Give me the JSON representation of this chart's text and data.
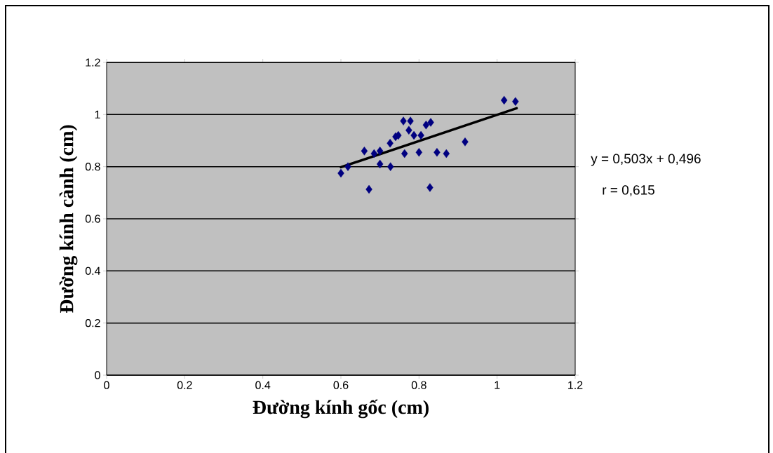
{
  "chart_data": {
    "type": "scatter",
    "xlabel": "Đường kính gốc (cm)",
    "ylabel": "Đường kính cành (cm)",
    "xlim": [
      0,
      1.2
    ],
    "ylim": [
      0,
      1.2
    ],
    "xticks": [
      0,
      0.2,
      0.4,
      0.6,
      0.8,
      1,
      1.2
    ],
    "yticks": [
      0,
      0.2,
      0.4,
      0.6,
      0.8,
      1,
      1.2
    ],
    "grid": "y",
    "annotations": [
      "y = 0,503x + 0,496",
      "r = 0,615"
    ],
    "series": [
      {
        "marker": "diamond",
        "color": "#000080",
        "x": [
          0.6,
          0.618,
          0.66,
          0.685,
          0.7,
          0.7,
          0.672,
          0.727,
          0.726,
          0.74,
          0.747,
          0.76,
          0.763,
          0.778,
          0.774,
          0.787,
          0.8,
          0.805,
          0.818,
          0.83,
          0.828,
          0.846,
          0.87,
          0.918,
          1.018,
          1.047
        ],
        "values": [
          0.775,
          0.8,
          0.86,
          0.85,
          0.81,
          0.86,
          0.713,
          0.8,
          0.89,
          0.915,
          0.92,
          0.975,
          0.85,
          0.975,
          0.94,
          0.92,
          0.855,
          0.92,
          0.96,
          0.97,
          0.72,
          0.855,
          0.85,
          0.895,
          1.055,
          1.05
        ]
      },
      {
        "type": "line",
        "marker": "none",
        "color": "#000000",
        "x": [
          0.6,
          1.05
        ],
        "values": [
          0.798,
          1.024
        ]
      }
    ]
  }
}
